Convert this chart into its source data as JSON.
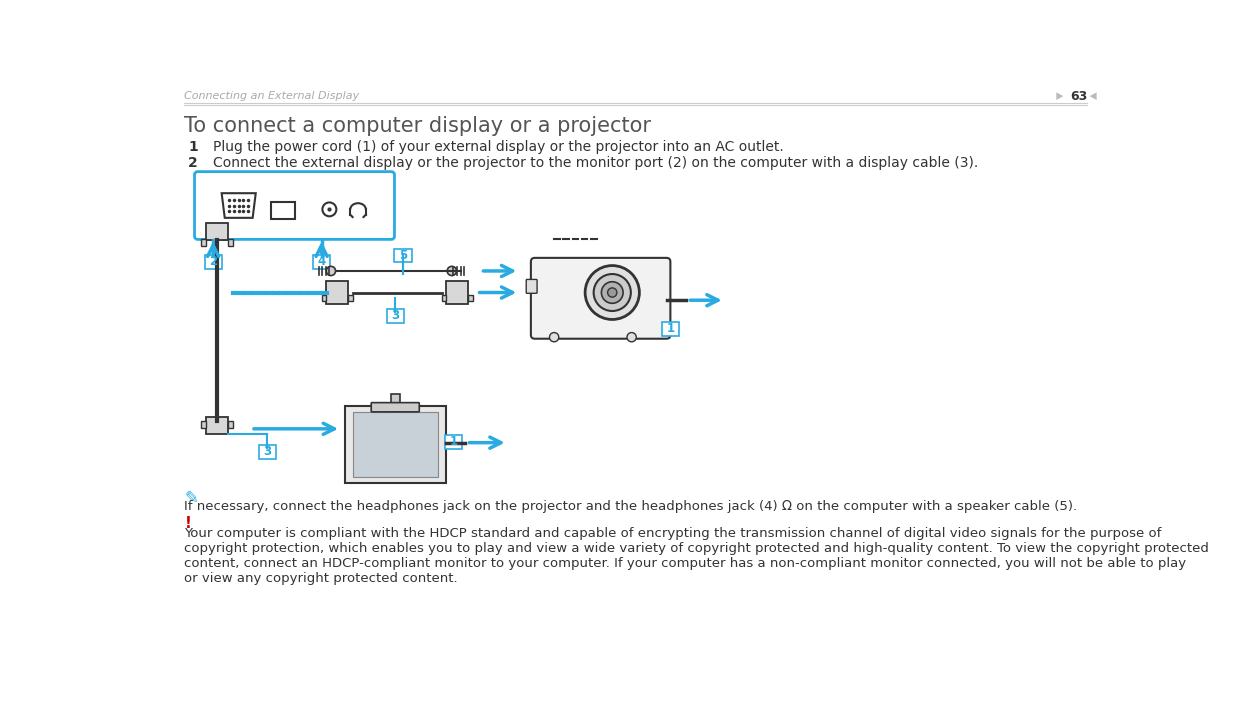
{
  "background_color": "#ffffff",
  "header_text": "Connecting an External Display",
  "header_page": "63",
  "header_color": "#aaaaaa",
  "title": "To connect a computer display or a projector",
  "title_color": "#555555",
  "title_fontsize": 15,
  "step1_num": "1",
  "step1_text": "Plug the power cord (1) of your external display or the projector into an AC outlet.",
  "step2_num": "2",
  "step2_text": "Connect the external display or the projector to the monitor port (2) on the computer with a display cable (3).",
  "note_text": "If necessary, connect the headphones jack on the projector and the headphones jack (4) Ω on the computer with a speaker cable (5).",
  "warning_symbol": "!",
  "warning_text": "Your computer is compliant with the HDCP standard and capable of encrypting the transmission channel of digital video signals for the purpose of\ncopyright protection, which enables you to play and view a wide variety of copyright protected and high-quality content. To view the copyright protected\ncontent, connect an HDCP-compliant monitor to your computer. If your computer has a non-compliant monitor connected, you will not be able to play\nor view any copyright protected content.",
  "cyan_color": "#29abe2",
  "dark_color": "#333333",
  "step_fontsize": 10,
  "note_fontsize": 9.5,
  "warn_fontsize": 9.5
}
